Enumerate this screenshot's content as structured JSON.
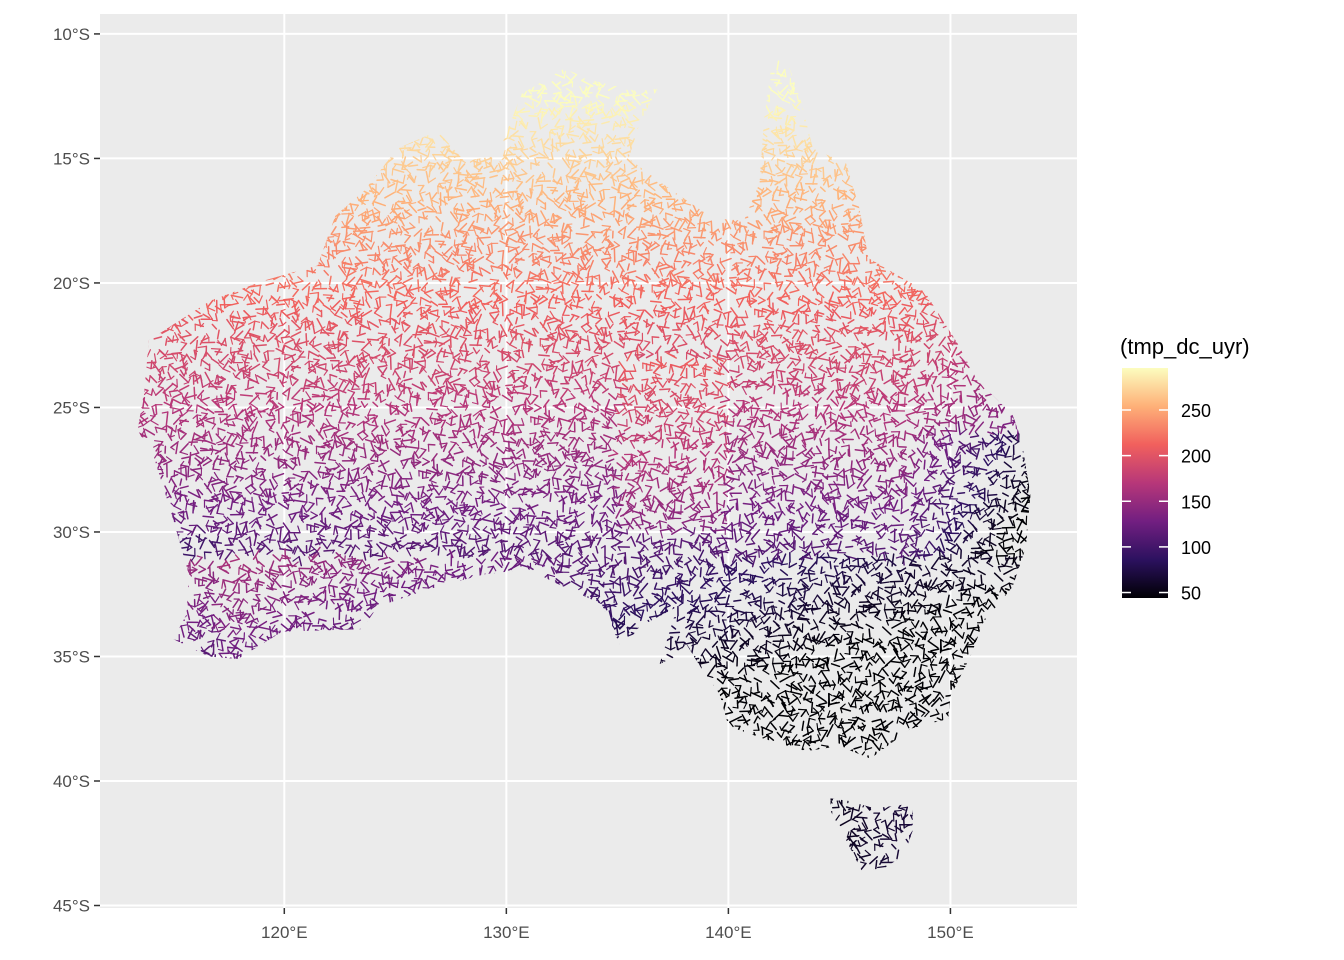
{
  "map": {
    "type": "river network map",
    "region": "Australia",
    "color_variable": "(tmp_dc_uyr)",
    "colormap": "magma",
    "colors": {
      "panel_background": "#ebebeb",
      "grid": "#ffffff",
      "axis_text": "#4d4d4d",
      "gradient_stops": [
        "#000004",
        "#2c115f",
        "#721f81",
        "#b73779",
        "#f1605d",
        "#feb078",
        "#fcfdbf"
      ]
    },
    "x_axis": {
      "ticks": [
        120,
        130,
        140,
        150
      ],
      "labels": [
        "120°E",
        "130°E",
        "140°E",
        "150°E"
      ],
      "range": [
        111.7,
        155.7
      ]
    },
    "y_axis": {
      "ticks": [
        -10,
        -15,
        -20,
        -25,
        -30,
        -35,
        -40,
        -45
      ],
      "labels": [
        "10°S",
        "15°S",
        "20°S",
        "25°S",
        "30°S",
        "35°S",
        "40°S",
        "45°S"
      ],
      "range": [
        -45.1,
        -9.2
      ]
    },
    "legend": {
      "title": "(tmp_dc_uyr)",
      "range": [
        44,
        296
      ],
      "breaks": [
        250,
        200,
        150,
        100,
        50
      ],
      "labels": [
        "250",
        "200",
        "150",
        "100",
        "50"
      ]
    },
    "mainland_outline_lonlat": [
      [
        142.5,
        -10.7
      ],
      [
        143.3,
        -12.8
      ],
      [
        143.8,
        -14.6
      ],
      [
        145.3,
        -15.2
      ],
      [
        145.9,
        -17.0
      ],
      [
        146.3,
        -19.0
      ],
      [
        148.8,
        -20.3
      ],
      [
        150.3,
        -22.4
      ],
      [
        151.2,
        -23.9
      ],
      [
        152.8,
        -25.3
      ],
      [
        153.2,
        -26.3
      ],
      [
        153.6,
        -28.5
      ],
      [
        153.4,
        -30.6
      ],
      [
        152.8,
        -32.2
      ],
      [
        151.5,
        -33.6
      ],
      [
        150.9,
        -35.0
      ],
      [
        150.0,
        -36.6
      ],
      [
        149.9,
        -37.5
      ],
      [
        148.2,
        -37.9
      ],
      [
        146.4,
        -39.1
      ],
      [
        145.0,
        -38.6
      ],
      [
        143.5,
        -38.8
      ],
      [
        141.6,
        -38.3
      ],
      [
        140.0,
        -37.8
      ],
      [
        139.6,
        -36.5
      ],
      [
        138.8,
        -35.5
      ],
      [
        138.1,
        -34.5
      ],
      [
        137.5,
        -35.1
      ],
      [
        136.9,
        -35.3
      ],
      [
        137.7,
        -33.0
      ],
      [
        136.0,
        -33.8
      ],
      [
        135.2,
        -34.7
      ],
      [
        134.3,
        -32.9
      ],
      [
        132.1,
        -32.0
      ],
      [
        131.0,
        -31.5
      ],
      [
        129.0,
        -31.7
      ],
      [
        126.5,
        -32.3
      ],
      [
        124.2,
        -33.0
      ],
      [
        123.5,
        -33.9
      ],
      [
        119.9,
        -34.0
      ],
      [
        117.9,
        -35.1
      ],
      [
        116.6,
        -35.0
      ],
      [
        115.0,
        -34.3
      ],
      [
        115.6,
        -33.3
      ],
      [
        115.7,
        -31.7
      ],
      [
        115.0,
        -29.5
      ],
      [
        114.2,
        -27.2
      ],
      [
        113.4,
        -25.9
      ],
      [
        113.7,
        -24.3
      ],
      [
        113.9,
        -22.3
      ],
      [
        116.7,
        -20.7
      ],
      [
        119.1,
        -19.9
      ],
      [
        121.5,
        -19.3
      ],
      [
        122.3,
        -17.3
      ],
      [
        123.6,
        -16.3
      ],
      [
        125.1,
        -14.6
      ],
      [
        126.9,
        -13.9
      ],
      [
        128.1,
        -15.1
      ],
      [
        129.6,
        -14.9
      ],
      [
        130.3,
        -13.3
      ],
      [
        130.7,
        -12.4
      ],
      [
        132.6,
        -11.4
      ],
      [
        134.0,
        -11.9
      ],
      [
        135.9,
        -12.3
      ],
      [
        136.8,
        -12.2
      ],
      [
        136.0,
        -13.6
      ],
      [
        135.5,
        -15.0
      ],
      [
        137.0,
        -16.0
      ],
      [
        139.3,
        -17.4
      ],
      [
        140.7,
        -17.5
      ],
      [
        141.4,
        -16.0
      ],
      [
        141.6,
        -13.5
      ],
      [
        141.9,
        -11.5
      ],
      [
        142.5,
        -10.7
      ]
    ],
    "tasmania_outline_lonlat": [
      [
        144.6,
        -40.7
      ],
      [
        145.4,
        -40.8
      ],
      [
        146.6,
        -41.1
      ],
      [
        148.3,
        -40.9
      ],
      [
        148.3,
        -42.0
      ],
      [
        147.9,
        -43.0
      ],
      [
        147.0,
        -43.5
      ],
      [
        146.0,
        -43.6
      ],
      [
        145.2,
        -42.2
      ],
      [
        144.6,
        -41.2
      ],
      [
        144.6,
        -40.7
      ]
    ]
  }
}
